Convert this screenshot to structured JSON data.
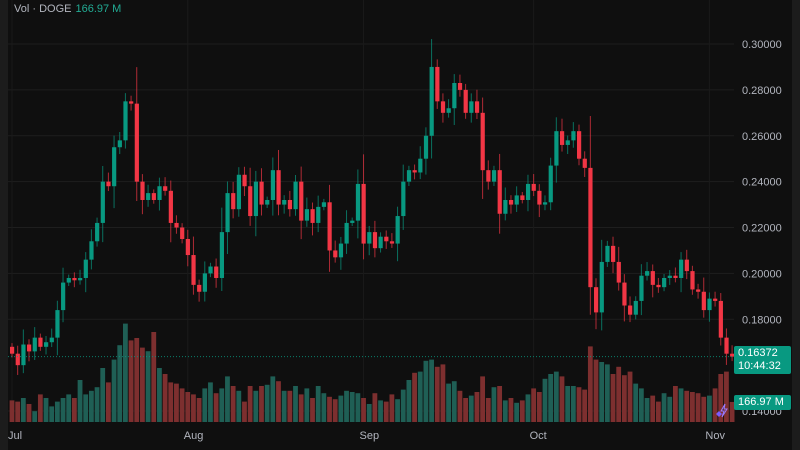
{
  "header": {
    "label": "Vol · DOGE",
    "value": "166.97 M"
  },
  "price_tag": {
    "price": "0.16372",
    "countdown": "10:44:32"
  },
  "volume_tag": "166.97 M",
  "colors": {
    "up": "#089981",
    "down": "#f23645",
    "up_volume": "#1f5f55",
    "down_volume": "#7d2f2f",
    "background": "#0f0f0f"
  },
  "chart_data": {
    "type": "candlestick",
    "symbol": "DOGE",
    "interval": "daily",
    "x_ticks": [
      "Jul",
      "Aug",
      "Sep",
      "Oct",
      "Nov"
    ],
    "y_ticks": [
      "0.30000",
      "0.28000",
      "0.26000",
      "0.24000",
      "0.22000",
      "0.20000",
      "0.18000",
      "0.14000"
    ],
    "ylim": [
      0.14,
      0.3
    ],
    "grid": true,
    "current_price": 0.16372,
    "close": [
      0.165,
      0.16,
      0.169,
      0.166,
      0.172,
      0.168,
      0.17,
      0.172,
      0.184,
      0.196,
      0.198,
      0.197,
      0.198,
      0.206,
      0.214,
      0.222,
      0.24,
      0.238,
      0.255,
      0.258,
      0.275,
      0.274,
      0.24,
      0.232,
      0.235,
      0.232,
      0.238,
      0.236,
      0.222,
      0.22,
      0.215,
      0.208,
      0.195,
      0.192,
      0.2,
      0.203,
      0.198,
      0.218,
      0.235,
      0.228,
      0.243,
      0.238,
      0.225,
      0.24,
      0.23,
      0.232,
      0.245,
      0.23,
      0.232,
      0.228,
      0.24,
      0.223,
      0.228,
      0.222,
      0.229,
      0.231,
      0.21,
      0.207,
      0.213,
      0.222,
      0.223,
      0.239,
      0.213,
      0.218,
      0.211,
      0.216,
      0.214,
      0.213,
      0.225,
      0.24,
      0.245,
      0.244,
      0.25,
      0.26,
      0.29,
      0.275,
      0.27,
      0.272,
      0.283,
      0.28,
      0.27,
      0.275,
      0.27,
      0.245,
      0.24,
      0.245,
      0.226,
      0.232,
      0.23,
      0.234,
      0.232,
      0.239,
      0.236,
      0.23,
      0.231,
      0.247,
      0.262,
      0.256,
      0.258,
      0.262,
      0.25,
      0.246,
      0.194,
      0.183,
      0.205,
      0.212,
      0.205,
      0.196,
      0.186,
      0.182,
      0.188,
      0.199,
      0.201,
      0.195,
      0.194,
      0.198,
      0.199,
      0.198,
      0.206,
      0.201,
      0.193,
      0.192,
      0.184,
      0.189,
      0.188,
      0.172,
      0.165,
      0.16372
    ],
    "volume_millions": [
      180,
      170,
      200,
      150,
      90,
      230,
      200,
      130,
      170,
      200,
      230,
      200,
      350,
      230,
      260,
      290,
      450,
      330,
      520,
      640,
      820,
      680,
      700,
      620,
      590,
      750,
      450,
      400,
      330,
      320,
      280,
      250,
      230,
      200,
      280,
      330,
      240,
      280,
      380,
      300,
      260,
      170,
      300,
      260,
      300,
      310,
      380,
      340,
      260,
      260,
      300,
      230,
      280,
      200,
      300,
      240,
      210,
      190,
      220,
      260,
      250,
      240,
      200,
      150,
      240,
      180,
      170,
      230,
      190,
      270,
      350,
      410,
      420,
      510,
      520,
      460,
      480,
      320,
      340,
      260,
      200,
      220,
      250,
      380,
      200,
      290,
      300,
      180,
      200,
      160,
      180,
      230,
      280,
      250,
      360,
      400,
      420,
      380,
      300,
      300,
      290,
      270,
      630,
      520,
      500,
      480,
      400,
      460,
      390,
      420,
      320,
      280,
      200,
      220,
      170,
      240,
      210,
      300,
      280,
      260,
      250,
      240,
      210,
      220,
      280,
      400,
      420,
      166.97
    ]
  }
}
